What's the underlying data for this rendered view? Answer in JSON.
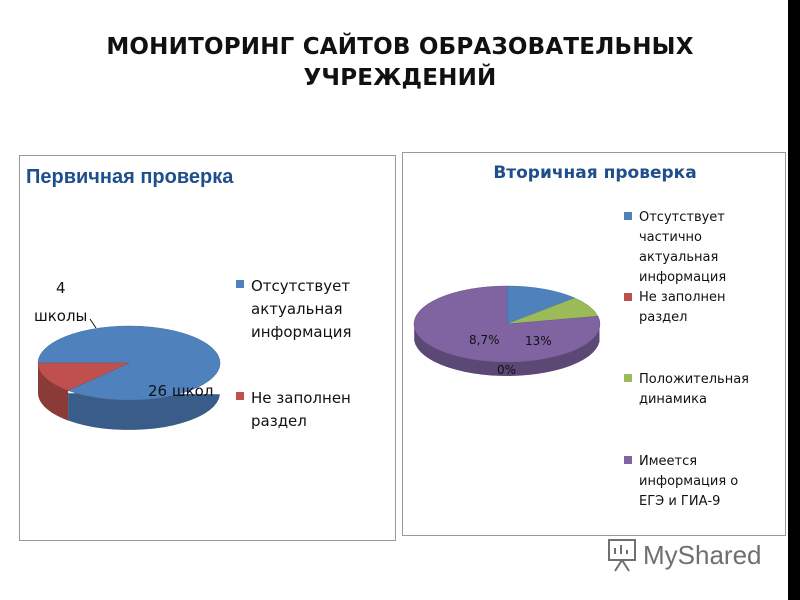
{
  "slide": {
    "title_line1": "МОНИТОРИНГ САЙТОВ ОБРАЗОВАТЕЛЬНЫХ",
    "title_line2": "УЧРЕЖДЕНИЙ"
  },
  "watermark": {
    "text": "MyShared"
  },
  "colors": {
    "blue": "#4f81bd",
    "red": "#c0504d",
    "green": "#9bbb59",
    "purple": "#8064a2",
    "title_blue": "#1f4e8c"
  },
  "chart_data": [
    {
      "type": "pie",
      "style": "3d",
      "title": "Первичная проверка",
      "legend_position": "right",
      "slices": [
        {
          "label": "Отсутствует актуальная информация",
          "value": 26,
          "data_label": "26 школ"
        },
        {
          "label": "Не заполнен раздел",
          "value": 4,
          "data_label_lines": [
            "4",
            "школы"
          ]
        }
      ]
    },
    {
      "type": "pie",
      "style": "3d",
      "title": "Вторичная проверка",
      "legend_position": "right",
      "slices": [
        {
          "label": "Отсутствует частично актуальная информация",
          "value": 13,
          "data_label": "13%"
        },
        {
          "label": "Не заполнен раздел",
          "value": 0,
          "data_label": "0%"
        },
        {
          "label": "Положительная динамика",
          "value": 8.7,
          "data_label": "8,7%"
        },
        {
          "label": "Имеется информация о ЕГЭ и ГИА-9",
          "value": 78.3,
          "data_label": ""
        }
      ]
    }
  ]
}
